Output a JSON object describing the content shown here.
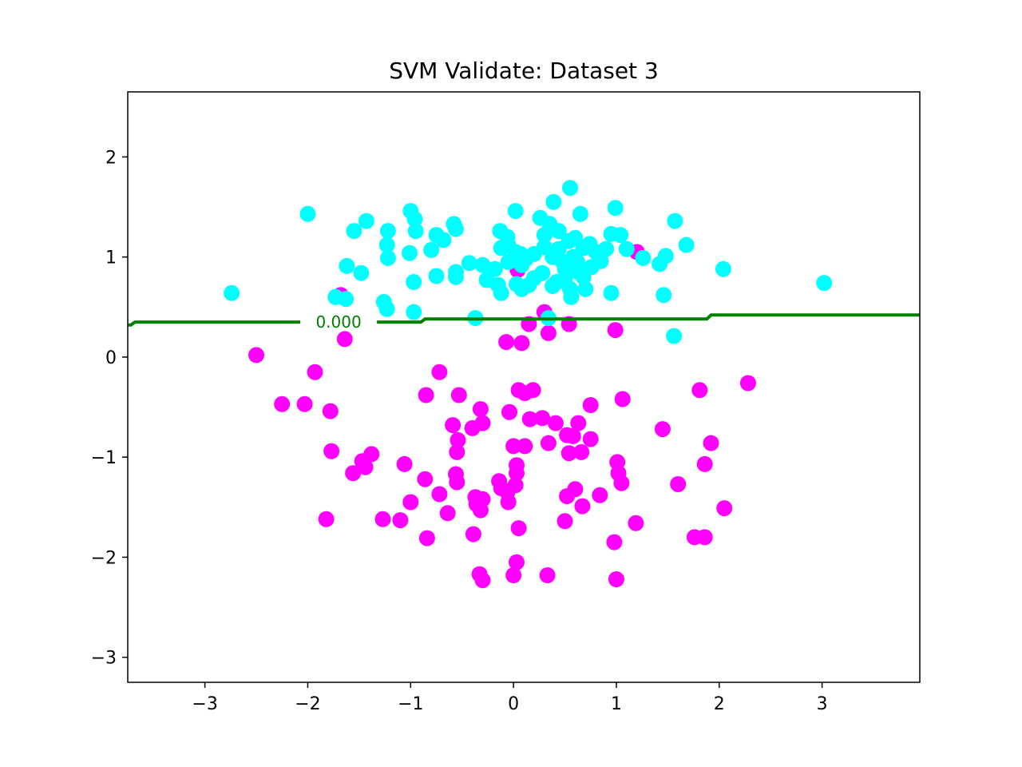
{
  "chart_data": {
    "type": "scatter",
    "title": "SVM Validate: Dataset 3",
    "xlabel": "",
    "ylabel": "",
    "xlim": [
      -3.75,
      3.95
    ],
    "ylim": [
      -3.25,
      2.65
    ],
    "xticks": [
      -3,
      -2,
      -1,
      0,
      1,
      2,
      3
    ],
    "yticks": [
      -3,
      -2,
      -1,
      0,
      1,
      2
    ],
    "xtick_labels": [
      "−3",
      "−2",
      "−1",
      "0",
      "1",
      "2",
      "3"
    ],
    "ytick_labels": [
      "−3",
      "−2",
      "−1",
      "0",
      "1",
      "2"
    ],
    "grid": false,
    "colors": {
      "class_a": "#00ffff",
      "class_b": "#ff00ff",
      "boundary": "#008000"
    },
    "decision_boundary": {
      "level_label": "0.000",
      "points": [
        [
          -3.75,
          0.32
        ],
        [
          -3.72,
          0.32
        ],
        [
          -3.68,
          0.35
        ],
        [
          -0.9,
          0.35
        ],
        [
          -0.86,
          0.38
        ],
        [
          1.88,
          0.38
        ],
        [
          1.92,
          0.42
        ],
        [
          3.95,
          0.42
        ]
      ]
    },
    "series": [
      {
        "color": "#ff00ff",
        "points": [
          [
            1.2,
            1.05
          ],
          [
            0.04,
            0.87
          ],
          [
            -1.68,
            0.62
          ],
          [
            -2.5,
            0.02
          ],
          [
            -1.64,
            0.18
          ],
          [
            -0.07,
            0.15
          ],
          [
            0.08,
            0.14
          ],
          [
            0.15,
            0.33
          ],
          [
            0.3,
            0.45
          ],
          [
            0.34,
            0.24
          ],
          [
            0.54,
            0.33
          ],
          [
            0.99,
            0.27
          ],
          [
            -1.93,
            -0.15
          ],
          [
            -0.72,
            -0.15
          ],
          [
            -2.25,
            -0.47
          ],
          [
            -2.03,
            -0.47
          ],
          [
            -1.78,
            -0.54
          ],
          [
            -0.85,
            -0.38
          ],
          [
            -0.53,
            -0.38
          ],
          [
            -0.32,
            -0.52
          ],
          [
            -0.04,
            -0.55
          ],
          [
            0.05,
            -0.33
          ],
          [
            0.11,
            -0.36
          ],
          [
            0.19,
            -0.33
          ],
          [
            0.16,
            -0.62
          ],
          [
            0.28,
            -0.61
          ],
          [
            0.41,
            -0.66
          ],
          [
            0.52,
            -0.78
          ],
          [
            0.58,
            -0.79
          ],
          [
            0.63,
            -0.66
          ],
          [
            0.75,
            -0.48
          ],
          [
            1.06,
            -0.42
          ],
          [
            1.81,
            -0.33
          ],
          [
            2.28,
            -0.26
          ],
          [
            1.45,
            -0.72
          ],
          [
            1.92,
            -0.86
          ],
          [
            0.34,
            -0.86
          ],
          [
            0.75,
            -0.82
          ],
          [
            0.54,
            -0.96
          ],
          [
            0.66,
            -0.95
          ],
          [
            0.0,
            -0.89
          ],
          [
            0.11,
            -0.89
          ],
          [
            -0.59,
            -0.68
          ],
          [
            -0.3,
            -0.66
          ],
          [
            -0.4,
            -0.71
          ],
          [
            -0.54,
            -0.83
          ],
          [
            -0.55,
            -0.95
          ],
          [
            -1.77,
            -0.94
          ],
          [
            -1.38,
            -0.97
          ],
          [
            -1.47,
            -1.04
          ],
          [
            -1.44,
            -1.1
          ],
          [
            -1.56,
            -1.16
          ],
          [
            -1.06,
            -1.07
          ],
          [
            -0.86,
            -1.22
          ],
          [
            -0.56,
            -1.17
          ],
          [
            -0.55,
            -1.25
          ],
          [
            0.03,
            -1.08
          ],
          [
            0.03,
            -1.16
          ],
          [
            -0.14,
            -1.24
          ],
          [
            -0.12,
            -1.31
          ],
          [
            0.02,
            -1.28
          ],
          [
            -0.06,
            -1.35
          ],
          [
            -0.05,
            -1.45
          ],
          [
            0.6,
            -1.32
          ],
          [
            0.52,
            -1.39
          ],
          [
            0.67,
            -1.49
          ],
          [
            0.84,
            -1.38
          ],
          [
            1.01,
            -1.05
          ],
          [
            1.02,
            -1.16
          ],
          [
            1.05,
            -1.26
          ],
          [
            1.6,
            -1.27
          ],
          [
            1.86,
            -1.07
          ],
          [
            -0.72,
            -1.37
          ],
          [
            -1.0,
            -1.45
          ],
          [
            -0.37,
            -1.4
          ],
          [
            -0.3,
            -1.42
          ],
          [
            -0.36,
            -1.47
          ],
          [
            -0.32,
            -1.53
          ],
          [
            -0.64,
            -1.56
          ],
          [
            -1.27,
            -1.62
          ],
          [
            -1.1,
            -1.63
          ],
          [
            -1.82,
            -1.62
          ],
          [
            0.5,
            -1.64
          ],
          [
            1.19,
            -1.66
          ],
          [
            0.05,
            -1.71
          ],
          [
            -0.39,
            -1.77
          ],
          [
            -0.84,
            -1.81
          ],
          [
            2.05,
            -1.51
          ],
          [
            1.76,
            -1.8
          ],
          [
            1.86,
            -1.8
          ],
          [
            0.98,
            -1.85
          ],
          [
            0.03,
            -2.05
          ],
          [
            0.0,
            -2.18
          ],
          [
            -0.33,
            -2.17
          ],
          [
            -0.3,
            -2.23
          ],
          [
            0.33,
            -2.18
          ],
          [
            1.0,
            -2.22
          ]
        ]
      },
      {
        "color": "#00ffff",
        "points": [
          [
            0.55,
            1.69
          ],
          [
            0.39,
            1.55
          ],
          [
            -2.0,
            1.43
          ],
          [
            -1.43,
            1.36
          ],
          [
            -1.55,
            1.26
          ],
          [
            -1.22,
            1.26
          ],
          [
            -1.0,
            1.46
          ],
          [
            -0.96,
            1.38
          ],
          [
            -0.95,
            1.26
          ],
          [
            -0.75,
            1.22
          ],
          [
            -0.58,
            1.33
          ],
          [
            -0.56,
            1.28
          ],
          [
            -0.68,
            1.17
          ],
          [
            -0.8,
            1.07
          ],
          [
            -1.23,
            1.12
          ],
          [
            -1.22,
            0.99
          ],
          [
            -1.01,
            1.04
          ],
          [
            -0.43,
            0.94
          ],
          [
            -0.56,
            0.85
          ],
          [
            -0.56,
            0.8
          ],
          [
            -0.75,
            0.81
          ],
          [
            -0.97,
            0.75
          ],
          [
            -1.48,
            0.84
          ],
          [
            -1.62,
            0.91
          ],
          [
            -2.74,
            0.64
          ],
          [
            -1.73,
            0.6
          ],
          [
            -1.63,
            0.58
          ],
          [
            -1.26,
            0.55
          ],
          [
            -1.23,
            0.48
          ],
          [
            -0.97,
            0.45
          ],
          [
            -0.37,
            0.39
          ],
          [
            0.34,
            0.39
          ],
          [
            0.02,
            1.46
          ],
          [
            0.26,
            1.39
          ],
          [
            0.35,
            1.33
          ],
          [
            0.3,
            1.22
          ],
          [
            0.44,
            1.26
          ],
          [
            0.54,
            1.16
          ],
          [
            0.6,
            1.19
          ],
          [
            0.65,
            1.43
          ],
          [
            0.99,
            1.49
          ],
          [
            0.95,
            1.23
          ],
          [
            1.04,
            1.22
          ],
          [
            1.1,
            1.08
          ],
          [
            0.9,
            1.08
          ],
          [
            0.74,
            1.13
          ],
          [
            0.8,
            1.05
          ],
          [
            0.68,
            1.09
          ],
          [
            0.58,
            1.0
          ],
          [
            0.44,
            1.08
          ],
          [
            0.48,
            0.95
          ],
          [
            0.38,
            1.0
          ],
          [
            0.3,
            1.1
          ],
          [
            0.2,
            1.03
          ],
          [
            0.07,
            1.03
          ],
          [
            -0.13,
            1.26
          ],
          [
            -0.06,
            1.2
          ],
          [
            -0.05,
            1.12
          ],
          [
            -0.12,
            1.09
          ],
          [
            0.02,
            1.05
          ],
          [
            0.08,
            0.92
          ],
          [
            -0.05,
            0.95
          ],
          [
            -0.18,
            0.88
          ],
          [
            -0.26,
            0.77
          ],
          [
            -0.15,
            0.72
          ],
          [
            -0.12,
            0.64
          ],
          [
            0.03,
            0.73
          ],
          [
            0.08,
            0.68
          ],
          [
            0.15,
            0.72
          ],
          [
            0.2,
            0.79
          ],
          [
            0.28,
            0.84
          ],
          [
            0.38,
            0.71
          ],
          [
            0.42,
            0.75
          ],
          [
            0.5,
            0.78
          ],
          [
            0.55,
            0.68
          ],
          [
            0.56,
            0.6
          ],
          [
            0.63,
            0.85
          ],
          [
            0.7,
            0.68
          ],
          [
            0.68,
            0.8
          ],
          [
            0.76,
            0.9
          ],
          [
            0.85,
            0.96
          ],
          [
            0.95,
            0.64
          ],
          [
            1.26,
            0.99
          ],
          [
            1.42,
            0.93
          ],
          [
            1.48,
            1.01
          ],
          [
            1.57,
            1.36
          ],
          [
            1.68,
            1.12
          ],
          [
            1.46,
            0.62
          ],
          [
            1.56,
            0.21
          ],
          [
            2.04,
            0.88
          ],
          [
            3.02,
            0.74
          ],
          [
            0.62,
            0.95
          ],
          [
            0.5,
            0.88
          ],
          [
            0.12,
            0.98
          ],
          [
            -0.3,
            0.92
          ]
        ]
      }
    ]
  }
}
